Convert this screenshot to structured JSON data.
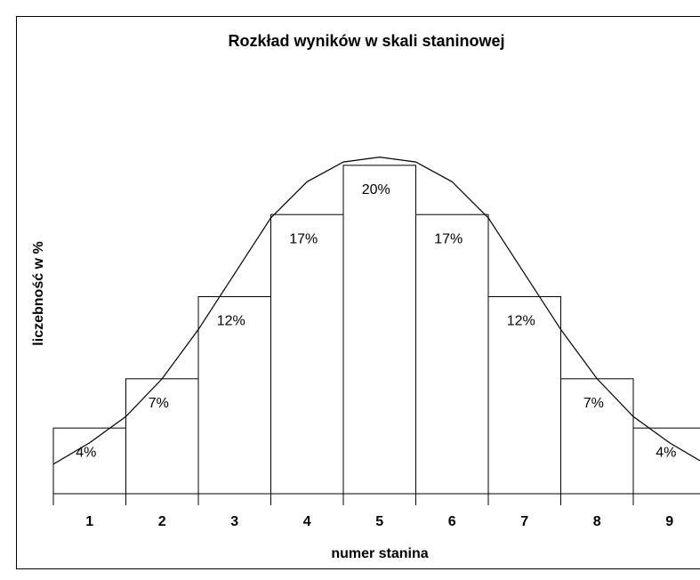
{
  "chart_data": {
    "type": "bar",
    "title": "Rozkład wyników w skali staninowej",
    "x_label": "numer stanina",
    "y_label": "liczebność w %",
    "categories": [
      "1",
      "2",
      "3",
      "4",
      "5",
      "6",
      "7",
      "8",
      "9"
    ],
    "values": [
      4,
      7,
      12,
      17,
      20,
      17,
      12,
      7,
      4
    ],
    "value_labels": [
      "4%",
      "7%",
      "12%",
      "17%",
      "20%",
      "17%",
      "12%",
      "7%",
      "4%"
    ],
    "color": "#ffffff",
    "ylim": [
      0,
      24
    ],
    "curve": {
      "type": "line",
      "color": "#000000",
      "x": [
        0.5,
        1,
        1.5,
        2,
        2.5,
        3,
        3.5,
        4,
        4.5,
        5,
        5.5,
        6,
        6.5,
        7,
        7.5,
        8,
        8.5,
        9,
        9.5
      ],
      "values": [
        1.8,
        3.1,
        4.7,
        7.0,
        10.0,
        13.4,
        16.8,
        19.0,
        20.2,
        20.5,
        20.2,
        19.0,
        16.8,
        13.4,
        10.0,
        7.0,
        4.7,
        3.1,
        1.8
      ]
    }
  }
}
